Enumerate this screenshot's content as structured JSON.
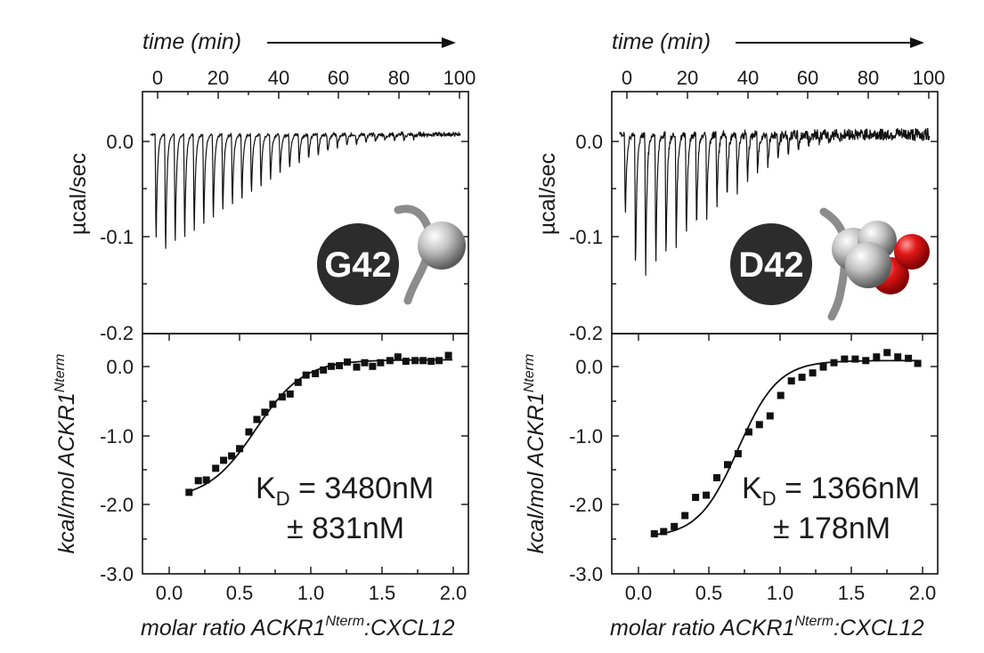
{
  "chart_data": [
    {
      "type": "line",
      "panel": "G42",
      "badge_label": "G42",
      "top": {
        "xlabel": "time (min)",
        "xticks": [
          "0",
          "20",
          "40",
          "60",
          "80",
          "100"
        ],
        "xlim": [
          -2.5,
          100
        ],
        "ylabel": "µcal/sec",
        "yticks": [
          "0.0",
          "-0.1",
          "-0.2"
        ],
        "ylim": [
          -0.2,
          0.043
        ],
        "injections": 28,
        "first_injection_min": 1.5,
        "injection_interval_min": 3.0,
        "end_min": 97.5,
        "peak_depths": [
          -0.115,
          -0.128,
          -0.12,
          -0.114,
          -0.107,
          -0.1,
          -0.093,
          -0.085,
          -0.078,
          -0.071,
          -0.064,
          -0.057,
          -0.05,
          -0.044,
          -0.038,
          -0.032,
          -0.027,
          -0.023,
          -0.019,
          -0.016,
          -0.013,
          -0.011,
          -0.009,
          -0.008,
          -0.007,
          -0.006,
          -0.006,
          -0.005
        ],
        "noise": 0.0008
      },
      "bottom": {
        "xlabel_prefix": "molar ratio ACKR1",
        "xlabel_sup": "Nterm",
        "xlabel_suffix": ":CXCL12",
        "ylabel_prefix": "kcal/mol ACKR1",
        "ylabel_sup": "Nterm",
        "xticks": [
          "0.0",
          "0.5",
          "1.0",
          "1.5",
          "2.0"
        ],
        "xlim": [
          -0.25,
          2.2
        ],
        "yticks": [
          "0.0",
          "-1.0",
          "-2.0",
          "-3.0"
        ],
        "ylim": [
          -3.0,
          0.3
        ],
        "points": [
          [
            0.1,
            -1.88
          ],
          [
            0.17,
            -1.72
          ],
          [
            0.23,
            -1.71
          ],
          [
            0.3,
            -1.55
          ],
          [
            0.36,
            -1.44
          ],
          [
            0.42,
            -1.38
          ],
          [
            0.48,
            -1.28
          ],
          [
            0.55,
            -1.05
          ],
          [
            0.61,
            -0.88
          ],
          [
            0.67,
            -0.78
          ],
          [
            0.73,
            -0.67
          ],
          [
            0.8,
            -0.57
          ],
          [
            0.86,
            -0.53
          ],
          [
            0.92,
            -0.37
          ],
          [
            0.98,
            -0.27
          ],
          [
            1.05,
            -0.25
          ],
          [
            1.11,
            -0.2
          ],
          [
            1.17,
            -0.15
          ],
          [
            1.23,
            -0.14
          ],
          [
            1.29,
            -0.09
          ],
          [
            1.36,
            -0.16
          ],
          [
            1.42,
            -0.1
          ],
          [
            1.48,
            -0.15
          ],
          [
            1.54,
            -0.1
          ],
          [
            1.61,
            -0.07
          ],
          [
            1.67,
            -0.02
          ],
          [
            1.73,
            -0.08
          ],
          [
            1.8,
            -0.07
          ],
          [
            1.86,
            -0.07
          ],
          [
            1.92,
            -0.08
          ],
          [
            1.98,
            -0.07
          ],
          [
            2.05,
            0.0
          ]
        ],
        "fit": {
          "x": [
            0.08,
            2.08
          ],
          "bottom": -1.98,
          "top": -0.06,
          "midpoint": 0.6,
          "slope": 0.18
        },
        "kd_prefix": "K",
        "kd_sub": "D",
        "kd_value": " = 3480nM",
        "kd_error": "± 831nM"
      }
    },
    {
      "type": "line",
      "panel": "D42",
      "badge_label": "D42",
      "top": {
        "xlabel": "time (min)",
        "xticks": [
          "0",
          "20",
          "40",
          "60",
          "80",
          "100"
        ],
        "xlim": [
          -2.5,
          100
        ],
        "ylabel": "µcal/sec",
        "yticks": [
          "0.0",
          "-0.1",
          "-0.2"
        ],
        "ylim": [
          -0.2,
          0.043
        ],
        "injections": 22,
        "first_injection_min": 1.5,
        "injection_interval_min": 3.2,
        "end_min": 97.5,
        "peak_depths": [
          -0.09,
          -0.145,
          -0.145,
          -0.14,
          -0.13,
          -0.12,
          -0.111,
          -0.1,
          -0.088,
          -0.078,
          -0.068,
          -0.058,
          -0.049,
          -0.041,
          -0.034,
          -0.027,
          -0.021,
          -0.016,
          -0.012,
          -0.009,
          -0.007,
          -0.006
        ],
        "noise": 0.0026
      },
      "bottom": {
        "xlabel_prefix": "molar ratio ACKR1",
        "xlabel_sup": "Nterm",
        "xlabel_suffix": ":CXCL12",
        "ylabel_prefix": "kcal/mol ACKR1",
        "ylabel_sup": "Nterm",
        "xticks": [
          "0.0",
          "0.5",
          "1.0",
          "1.5",
          "2.0"
        ],
        "xlim": [
          -0.25,
          2.2
        ],
        "yticks": [
          "0.0",
          "-1.0",
          "-2.0",
          "-3.0"
        ],
        "ylim": [
          -3.0,
          0.3
        ],
        "points": [
          [
            0.07,
            -2.45
          ],
          [
            0.14,
            -2.42
          ],
          [
            0.22,
            -2.35
          ],
          [
            0.3,
            -2.2
          ],
          [
            0.38,
            -1.95
          ],
          [
            0.46,
            -1.92
          ],
          [
            0.54,
            -1.68
          ],
          [
            0.62,
            -1.5
          ],
          [
            0.7,
            -1.35
          ],
          [
            0.78,
            -1.05
          ],
          [
            0.86,
            -0.95
          ],
          [
            0.94,
            -0.83
          ],
          [
            1.02,
            -0.55
          ],
          [
            1.1,
            -0.35
          ],
          [
            1.18,
            -0.3
          ],
          [
            1.26,
            -0.24
          ],
          [
            1.34,
            -0.16
          ],
          [
            1.42,
            -0.1
          ],
          [
            1.5,
            -0.05
          ],
          [
            1.58,
            -0.05
          ],
          [
            1.66,
            -0.07
          ],
          [
            1.74,
            -0.02
          ],
          [
            1.82,
            0.04
          ],
          [
            1.9,
            -0.02
          ],
          [
            1.98,
            -0.04
          ],
          [
            2.05,
            -0.11
          ]
        ],
        "fit": {
          "x": [
            0.06,
            2.05
          ],
          "bottom": -2.5,
          "top": -0.07,
          "midpoint": 0.7,
          "slope": 0.15
        },
        "kd_prefix": "K",
        "kd_sub": "D",
        "kd_value": " = 1366nM",
        "kd_error": "± 178nM"
      }
    }
  ]
}
